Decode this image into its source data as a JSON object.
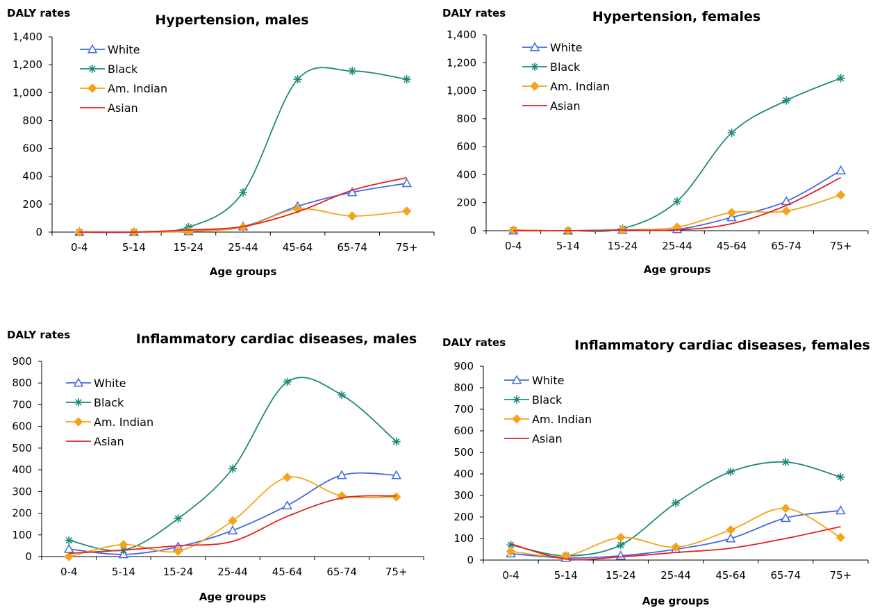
{
  "colors": {
    "White": "#4169E1",
    "Black": "#1F8A7A",
    "Am. Indian": "#F5A31A",
    "Asian": "#E31E1E"
  },
  "markers": {
    "White": "triangle",
    "Black": "asterisk",
    "Am. Indian": "diamond",
    "Asian": "none"
  },
  "chart_data": [
    {
      "type": "line",
      "title": "Hypertension, males",
      "xlabel": "Age groups",
      "ylabel": "DALY rates",
      "categories": [
        "0-4",
        "5-14",
        "15-24",
        "25-44",
        "45-64",
        "65-74",
        "75+"
      ],
      "ylim": [
        0,
        1400
      ],
      "yticks": [
        0,
        200,
        400,
        600,
        800,
        1000,
        1200,
        1400
      ],
      "ytick_labels": [
        "0",
        "200",
        "400",
        "600",
        "800",
        "1,000",
        "1,200",
        "1,400"
      ],
      "legend": "top-left",
      "series": [
        {
          "name": "White",
          "values": [
            0,
            0,
            5,
            40,
            185,
            285,
            350
          ]
        },
        {
          "name": "Black",
          "values": [
            0,
            0,
            35,
            285,
            1095,
            1155,
            1095
          ]
        },
        {
          "name": "Am. Indian",
          "values": [
            0,
            0,
            5,
            35,
            165,
            115,
            150
          ]
        },
        {
          "name": "Asian",
          "values": [
            0,
            0,
            15,
            40,
            145,
            300,
            390
          ]
        }
      ]
    },
    {
      "type": "line",
      "title": "Hypertension, females",
      "xlabel": "Age groups",
      "ylabel": "DALY rates",
      "categories": [
        "0-4",
        "5-14",
        "15-24",
        "25-44",
        "45-64",
        "65-74",
        "75+"
      ],
      "ylim": [
        0,
        1400
      ],
      "yticks": [
        0,
        200,
        400,
        600,
        800,
        1000,
        1200,
        1400
      ],
      "ytick_labels": [
        "0",
        "200",
        "400",
        "600",
        "800",
        "1,000",
        "1,200",
        "1,400"
      ],
      "legend": "top-left",
      "series": [
        {
          "name": "White",
          "values": [
            0,
            0,
            5,
            10,
            95,
            210,
            430
          ]
        },
        {
          "name": "Black",
          "values": [
            5,
            0,
            15,
            210,
            700,
            930,
            1090
          ]
        },
        {
          "name": "Am. Indian",
          "values": [
            5,
            0,
            5,
            25,
            130,
            140,
            255
          ]
        },
        {
          "name": "Asian",
          "values": [
            0,
            0,
            5,
            5,
            50,
            180,
            380
          ]
        }
      ]
    },
    {
      "type": "line",
      "title": "Inflammatory cardiac diseases, males",
      "xlabel": "Age groups",
      "ylabel": "DALY rates",
      "categories": [
        "0-4",
        "5-14",
        "15-24",
        "25-44",
        "45-64",
        "65-74",
        "75+"
      ],
      "ylim": [
        0,
        900
      ],
      "yticks": [
        0,
        100,
        200,
        300,
        400,
        500,
        600,
        700,
        800,
        900
      ],
      "ytick_labels": [
        "0",
        "100",
        "200",
        "300",
        "400",
        "500",
        "600",
        "700",
        "800",
        "900"
      ],
      "legend": "top-left",
      "series": [
        {
          "name": "White",
          "values": [
            35,
            10,
            45,
            120,
            235,
            375,
            375
          ]
        },
        {
          "name": "Black",
          "values": [
            75,
            30,
            175,
            405,
            805,
            745,
            530
          ]
        },
        {
          "name": "Am. Indian",
          "values": [
            0,
            55,
            25,
            165,
            365,
            280,
            275
          ]
        },
        {
          "name": "Asian",
          "values": [
            15,
            30,
            50,
            70,
            185,
            270,
            280
          ]
        }
      ]
    },
    {
      "type": "line",
      "title": "Inflammatory cardiac diseases, females",
      "xlabel": "Age groups",
      "ylabel": "DALY rates",
      "categories": [
        "0-4",
        "5-14",
        "15-24",
        "25-44",
        "45-64",
        "65-74",
        "75+"
      ],
      "ylim": [
        0,
        900
      ],
      "yticks": [
        0,
        100,
        200,
        300,
        400,
        500,
        600,
        700,
        800,
        900
      ],
      "ytick_labels": [
        "0",
        "100",
        "200",
        "300",
        "400",
        "500",
        "600",
        "700",
        "800",
        "900"
      ],
      "legend": "top-left",
      "series": [
        {
          "name": "White",
          "values": [
            30,
            10,
            20,
            50,
            100,
            195,
            230
          ]
        },
        {
          "name": "Black",
          "values": [
            70,
            20,
            70,
            265,
            410,
            455,
            385
          ]
        },
        {
          "name": "Am. Indian",
          "values": [
            40,
            20,
            105,
            60,
            140,
            240,
            105
          ]
        },
        {
          "name": "Asian",
          "values": [
            75,
            5,
            15,
            35,
            55,
            100,
            155
          ]
        }
      ]
    }
  ]
}
